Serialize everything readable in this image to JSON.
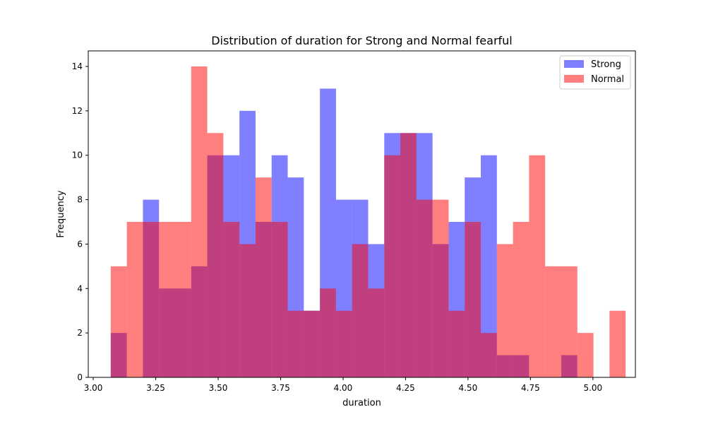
{
  "chart_data": {
    "type": "bar",
    "title": "Distribution of duration for Strong and Normal fearful",
    "xlabel": "duration",
    "ylabel": "Frequency",
    "xlim": [
      2.98,
      5.17
    ],
    "ylim": [
      0,
      14.7
    ],
    "xticks": [
      3.0,
      3.25,
      3.5,
      3.75,
      4.0,
      4.25,
      4.5,
      4.75,
      5.0
    ],
    "yticks": [
      0,
      2,
      4,
      6,
      8,
      10,
      12,
      14
    ],
    "legend_position": "top-right",
    "grid": false,
    "series": [
      {
        "name": "Strong",
        "color": "#0000ff",
        "opacity": 0.5,
        "bin_start": 3.07,
        "bin_width": 0.0644,
        "counts": [
          2,
          0,
          8,
          4,
          4,
          5,
          10,
          10,
          12,
          7,
          10,
          9,
          3,
          13,
          8,
          8,
          6,
          11,
          11,
          11,
          6,
          7,
          9,
          10,
          1,
          1,
          0,
          0,
          1
        ]
      },
      {
        "name": "Normal",
        "color": "#ff0000",
        "opacity": 0.5,
        "bin_start": 3.07,
        "bin_width": 0.0644,
        "counts": [
          5,
          7,
          7,
          7,
          7,
          14,
          11,
          7,
          6,
          9,
          7,
          3,
          3,
          4,
          3,
          6,
          4,
          10,
          11,
          8,
          8,
          3,
          7,
          2,
          6,
          7,
          10,
          5,
          5,
          2,
          0,
          3
        ]
      }
    ]
  }
}
